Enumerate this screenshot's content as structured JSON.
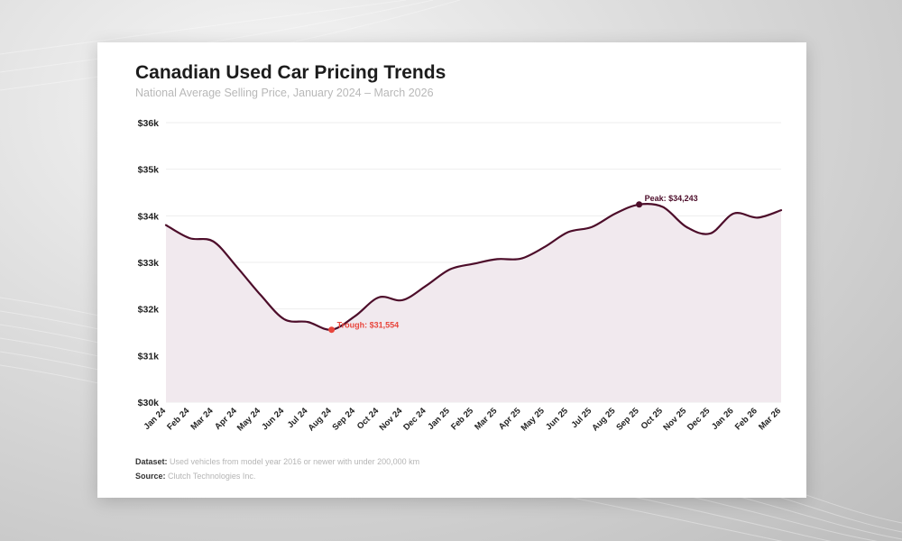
{
  "page": {
    "title": "Canadian Used Car Pricing Trends",
    "subtitle": "National Average Selling Price, January 2024 – March 2026",
    "dataset_label": "Dataset:",
    "dataset_text": "Used vehicles from model year 2016 or newer with under 200,000 km",
    "source_label": "Source:",
    "source_text": "Clutch Technologies Inc."
  },
  "colors": {
    "line": "#4d0d2a",
    "fill": "#f1e9ee",
    "grid": "#eeeeee",
    "trough": "#e8453c",
    "peak": "#4d0d2a"
  },
  "chart_data": {
    "type": "area",
    "categories": [
      "Jan 24",
      "Feb 24",
      "Mar 24",
      "Apr 24",
      "May 24",
      "Jun 24",
      "Jul 24",
      "Aug 24",
      "Sep 24",
      "Oct 24",
      "Nov 24",
      "Dec 24",
      "Jan 25",
      "Feb 25",
      "Mar 25",
      "Apr 25",
      "May 25",
      "Jun 25",
      "Jul 25",
      "Aug 25",
      "Sep 25",
      "Oct 25",
      "Nov 25",
      "Dec 25",
      "Jan 26",
      "Feb 26",
      "Mar 26"
    ],
    "values": [
      33800,
      33520,
      33450,
      32900,
      32300,
      31780,
      31720,
      31554,
      31850,
      32250,
      32190,
      32500,
      32850,
      32970,
      33070,
      33080,
      33330,
      33650,
      33760,
      34050,
      34243,
      34190,
      33760,
      33620,
      34050,
      33960,
      34120
    ],
    "ylim": [
      30000,
      36000
    ],
    "yticks": [
      30000,
      31000,
      32000,
      33000,
      34000,
      35000,
      36000
    ],
    "ytick_labels": [
      "$30k",
      "$31k",
      "$32k",
      "$33k",
      "$34k",
      "$35k",
      "$36k"
    ],
    "annotations": [
      {
        "label": "Trough: $31,554",
        "category": "Aug 24",
        "value": 31554,
        "kind": "trough"
      },
      {
        "label": "Peak: $34,243",
        "category": "Sep 25",
        "value": 34243,
        "kind": "peak"
      }
    ],
    "grid": true,
    "legend": "none"
  }
}
